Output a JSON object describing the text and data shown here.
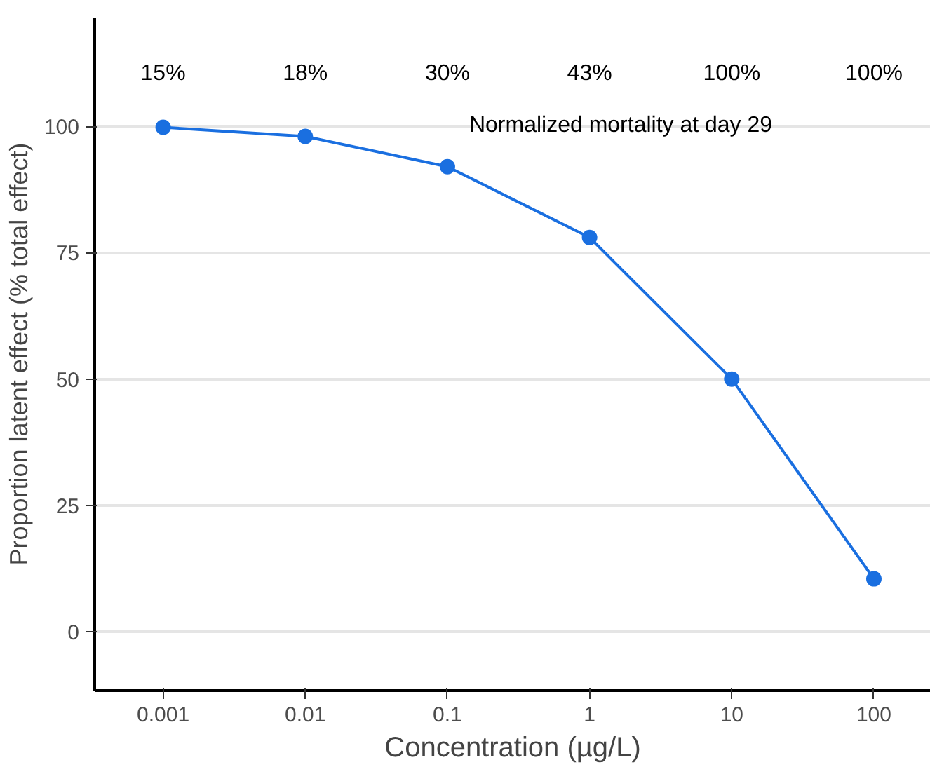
{
  "chart_data": {
    "type": "line",
    "xlabel": "Concentration (µg/L)",
    "ylabel": "Proportion latent effect (% total effect)",
    "x": [
      0.001,
      0.01,
      0.1,
      1,
      10,
      100
    ],
    "series": [
      {
        "color": "#1a6fe0",
        "values": [
          99.8,
          98,
          92,
          78,
          50,
          10.5
        ]
      }
    ],
    "log": "x",
    "xlim": [
      0.00033,
      251
    ],
    "ylim": [
      -11.6,
      121.5
    ],
    "xticks": [
      0.001,
      0.01,
      0.1,
      1,
      10,
      100
    ],
    "yticks": [
      0,
      25,
      50,
      75,
      100
    ],
    "grid": "y",
    "marker": "circle",
    "line_style": "solid",
    "annotations": [
      "15%",
      "18%",
      "30%",
      "43%",
      "100%",
      "100%",
      "Normalized mortality at day 29"
    ]
  }
}
